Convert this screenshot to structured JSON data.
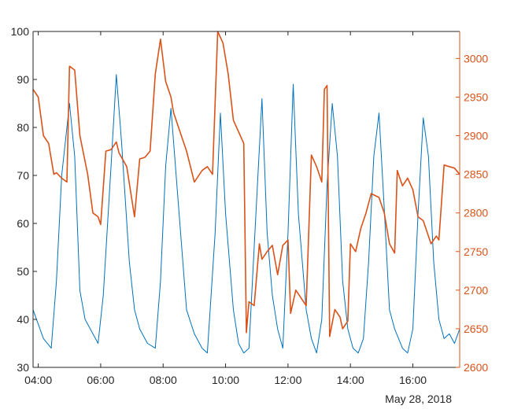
{
  "colors": {
    "left_series": "#0072BD",
    "right_series": "#D95319",
    "axis_left": "#262626",
    "axis_right": "#D95319",
    "background": "#ffffff"
  },
  "chart_data": {
    "type": "line",
    "dual_axis": true,
    "title": "",
    "xlabel": "",
    "ylabel_left": "",
    "ylabel_right": "",
    "date_label": "May 28, 2018",
    "grid": false,
    "xlim": [
      "03:50",
      "17:30"
    ],
    "x_ticks": [
      "04:00",
      "06:00",
      "08:00",
      "10:00",
      "12:00",
      "14:00",
      "16:00"
    ],
    "y_left": {
      "lim": [
        30,
        100
      ],
      "ticks": [
        "30",
        "40",
        "50",
        "60",
        "70",
        "80",
        "90",
        "100"
      ]
    },
    "y_right": {
      "lim": [
        2600,
        3035
      ],
      "ticks": [
        "2600",
        "2650",
        "2700",
        "2750",
        "2800",
        "2850",
        "2900",
        "2950",
        "3000"
      ]
    },
    "series": [
      {
        "axis": "left",
        "x": [
          "03:50",
          "04:10",
          "04:25",
          "04:35",
          "04:45",
          "05:00",
          "05:10",
          "05:20",
          "05:30",
          "05:45",
          "05:55",
          "06:05",
          "06:20",
          "06:30",
          "06:40",
          "06:55",
          "07:05",
          "07:15",
          "07:30",
          "07:45",
          "07:55",
          "08:05",
          "08:15",
          "08:30",
          "08:45",
          "09:00",
          "09:15",
          "09:25",
          "09:40",
          "09:50",
          "10:00",
          "10:15",
          "10:25",
          "10:35",
          "10:45",
          "10:55",
          "11:10",
          "11:20",
          "11:30",
          "11:40",
          "11:50",
          "12:00",
          "12:10",
          "12:20",
          "12:35",
          "12:45",
          "12:55",
          "13:05",
          "13:15",
          "13:25",
          "13:35",
          "13:45",
          "13:55",
          "14:05",
          "14:15",
          "14:25",
          "14:35",
          "14:45",
          "14:55",
          "15:05",
          "15:15",
          "15:25",
          "15:40",
          "15:50",
          "16:00",
          "16:10",
          "16:20",
          "16:30",
          "16:40",
          "16:50",
          "17:00",
          "17:10",
          "17:20",
          "17:30"
        ],
        "values": [
          42,
          36,
          34,
          48,
          70,
          85,
          74,
          46,
          40,
          37,
          35,
          45,
          72,
          91,
          77,
          52,
          42,
          38,
          35,
          34,
          48,
          72,
          84,
          63,
          42,
          37,
          34,
          33,
          58,
          83,
          62,
          42,
          35,
          33,
          34,
          55,
          86,
          58,
          45,
          38,
          34,
          58,
          89,
          62,
          42,
          36,
          33,
          40,
          68,
          85,
          74,
          48,
          38,
          34,
          33,
          36,
          52,
          74,
          83,
          63,
          42,
          38,
          34,
          33,
          38,
          62,
          82,
          74,
          52,
          40,
          36,
          37,
          35,
          38
        ]
      },
      {
        "axis": "right",
        "x": [
          "03:50",
          "04:00",
          "04:10",
          "04:20",
          "04:30",
          "04:35",
          "04:45",
          "04:55",
          "05:00",
          "05:10",
          "05:20",
          "05:35",
          "05:45",
          "05:55",
          "06:00",
          "06:10",
          "06:20",
          "06:30",
          "06:35",
          "06:50",
          "07:05",
          "07:15",
          "07:25",
          "07:35",
          "07:45",
          "07:55",
          "08:05",
          "08:15",
          "08:20",
          "08:30",
          "08:45",
          "09:00",
          "09:15",
          "09:25",
          "09:35",
          "09:45",
          "09:55",
          "10:05",
          "10:15",
          "10:25",
          "10:35",
          "10:40",
          "10:45",
          "10:55",
          "11:05",
          "11:10",
          "11:20",
          "11:30",
          "11:40",
          "11:50",
          "12:00",
          "12:05",
          "12:15",
          "12:25",
          "12:35",
          "12:45",
          "12:55",
          "13:05",
          "13:10",
          "13:15",
          "13:20",
          "13:30",
          "13:40",
          "13:45",
          "13:55",
          "14:00",
          "14:10",
          "14:20",
          "14:30",
          "14:40",
          "14:55",
          "15:05",
          "15:15",
          "15:25",
          "15:30",
          "15:40",
          "15:50",
          "16:00",
          "16:10",
          "16:20",
          "16:30",
          "16:35",
          "16:45",
          "16:50",
          "17:00",
          "17:10",
          "17:20",
          "17:30"
        ],
        "values": [
          2960,
          2950,
          2900,
          2890,
          2850,
          2852,
          2845,
          2840,
          2990,
          2985,
          2900,
          2850,
          2800,
          2795,
          2785,
          2880,
          2882,
          2892,
          2878,
          2860,
          2795,
          2870,
          2872,
          2880,
          2980,
          3025,
          2970,
          2950,
          2930,
          2910,
          2880,
          2840,
          2855,
          2860,
          2850,
          3035,
          3020,
          2980,
          2920,
          2905,
          2890,
          2645,
          2685,
          2680,
          2760,
          2740,
          2750,
          2758,
          2720,
          2758,
          2765,
          2670,
          2700,
          2690,
          2680,
          2875,
          2860,
          2840,
          2960,
          2965,
          2640,
          2675,
          2665,
          2650,
          2660,
          2760,
          2750,
          2780,
          2800,
          2825,
          2820,
          2800,
          2760,
          2748,
          2855,
          2835,
          2845,
          2830,
          2795,
          2790,
          2770,
          2760,
          2770,
          2765,
          2862,
          2860,
          2858,
          2850
        ]
      }
    ]
  }
}
